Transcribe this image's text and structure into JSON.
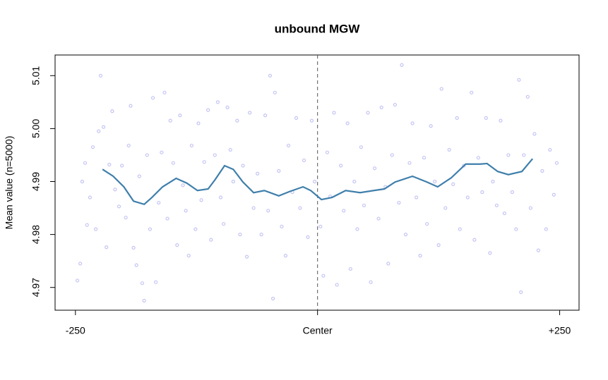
{
  "chart_data": {
    "type": "scatter",
    "title": "unbound MGW",
    "ylabel": "Mean value (n=5000)",
    "xlim": [
      -271,
      270
    ],
    "ylim": [
      4.9657,
      5.0139
    ],
    "xticks": [
      {
        "value": -250,
        "label": "-250"
      },
      {
        "value": 0,
        "label": "Center"
      },
      {
        "value": 250,
        "label": "+250"
      }
    ],
    "yticks": [
      4.97,
      4.98,
      4.99,
      {
        "value": 5,
        "label": "5.00"
      },
      5.01
    ],
    "vline": 0,
    "points": {
      "color": "#c4c4f4",
      "x": [
        -248,
        -245,
        -243,
        -240,
        -238,
        -235,
        -232,
        -229,
        -226,
        -224,
        -221,
        -218,
        -215,
        -212,
        -209,
        -205,
        -202,
        -198,
        -195,
        -193,
        -190,
        -187,
        -184,
        -181,
        -179,
        -176,
        -173,
        -170,
        -167,
        -164,
        -161,
        -158,
        -155,
        -152,
        -149,
        -145,
        -142,
        -139,
        -136,
        -133,
        -130,
        -126,
        -123,
        -120,
        -117,
        -113,
        -110,
        -106,
        -103,
        -100,
        -97,
        -93,
        -90,
        -87,
        -83,
        -80,
        -77,
        -73,
        -70,
        -66,
        -62,
        -58,
        -54,
        -51,
        -49,
        -46,
        -44,
        -40,
        -37,
        -33,
        -30,
        -26,
        -22,
        -18,
        -14,
        -10,
        -6,
        -3,
        3,
        6,
        10,
        13,
        17,
        20,
        24,
        27,
        31,
        34,
        38,
        41,
        45,
        48,
        52,
        55,
        59,
        63,
        66,
        70,
        73,
        77,
        80,
        84,
        87,
        91,
        95,
        98,
        102,
        106,
        110,
        113,
        117,
        121,
        125,
        128,
        132,
        136,
        140,
        144,
        147,
        151,
        155,
        159,
        162,
        166,
        170,
        174,
        178,
        181,
        185,
        189,
        193,
        197,
        201,
        205,
        208,
        210,
        213,
        217,
        220,
        224,
        228,
        232,
        236,
        240,
        244,
        247
      ],
      "y": [
        4.9713,
        4.9745,
        4.99,
        4.9935,
        4.9818,
        4.987,
        4.9965,
        4.981,
        4.9995,
        5.01,
        5.0003,
        4.9776,
        4.9932,
        5.0033,
        4.9885,
        4.9853,
        4.993,
        4.9832,
        4.9968,
        5.0043,
        4.9775,
        4.9742,
        4.991,
        4.9708,
        4.9675,
        4.995,
        4.981,
        5.0058,
        4.971,
        4.986,
        4.9955,
        5.0068,
        4.983,
        5.0015,
        4.9935,
        4.978,
        5.0025,
        4.9893,
        4.9845,
        4.976,
        4.9968,
        4.981,
        5.001,
        4.9865,
        4.9937,
        5.0035,
        4.979,
        4.995,
        5.005,
        4.987,
        4.982,
        5.004,
        4.996,
        4.99,
        5.0015,
        4.98,
        4.993,
        4.9758,
        5.003,
        4.985,
        4.9915,
        4.98,
        5.0025,
        4.9845,
        5.01,
        4.9679,
        5.0068,
        4.992,
        4.9815,
        4.976,
        4.9968,
        4.988,
        5.002,
        4.985,
        4.994,
        4.9795,
        5.0015,
        4.99,
        4.9815,
        4.9722,
        4.9955,
        4.9872,
        5.003,
        4.9705,
        4.993,
        4.9845,
        5.001,
        4.9735,
        4.99,
        4.981,
        4.9965,
        4.9855,
        5.003,
        4.971,
        4.9925,
        4.983,
        5.004,
        4.989,
        4.9745,
        4.995,
        5.0045,
        4.986,
        5.012,
        4.98,
        4.9935,
        5.001,
        4.987,
        4.976,
        4.9945,
        4.982,
        5.0005,
        4.99,
        4.978,
        5.0075,
        4.985,
        4.996,
        4.9895,
        5.002,
        4.981,
        4.993,
        4.987,
        5.0068,
        4.979,
        4.9945,
        4.988,
        5.002,
        4.9765,
        4.99,
        4.9855,
        5.0015,
        4.984,
        4.995,
        4.988,
        4.981,
        5.0092,
        4.9691,
        4.995,
        5.006,
        4.985,
        4.999,
        4.977,
        4.992,
        4.981,
        4.996,
        4.9875,
        4.9935
      ]
    },
    "smooth": {
      "color": "#3f7fab",
      "x": [
        -222,
        -211,
        -200,
        -190,
        -179,
        -171,
        -160,
        -146,
        -135,
        -124,
        -113,
        -106,
        -96,
        -87,
        -77,
        -66,
        -55,
        -40,
        -29,
        -15,
        -7,
        4,
        15,
        29,
        44,
        58,
        69,
        80,
        98,
        113,
        124,
        138,
        153,
        168,
        175,
        186,
        197,
        211,
        222
      ],
      "y": [
        4.9923,
        4.991,
        4.989,
        4.9863,
        4.9857,
        4.987,
        4.989,
        4.9906,
        4.9897,
        4.9883,
        4.9886,
        4.9903,
        4.993,
        4.9923,
        4.9899,
        4.9879,
        4.9883,
        4.9873,
        4.9881,
        4.989,
        4.9883,
        4.9866,
        4.987,
        4.9883,
        4.9879,
        4.9883,
        4.9886,
        4.9899,
        4.991,
        4.9899,
        4.989,
        4.9907,
        4.9933,
        4.9933,
        4.9934,
        4.9919,
        4.9913,
        4.9919,
        4.9943
      ]
    }
  }
}
